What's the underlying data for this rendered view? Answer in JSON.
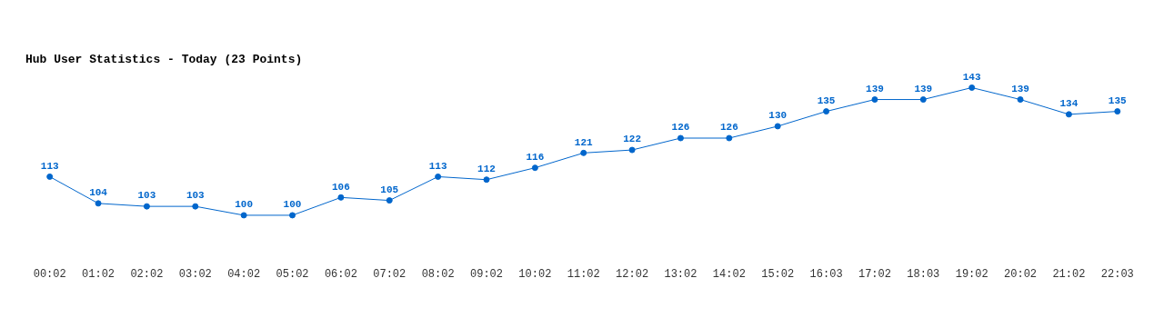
{
  "chart_data": {
    "type": "line",
    "title": "Hub User Statistics - Today (23 Points)",
    "categories": [
      "00:02",
      "01:02",
      "02:02",
      "03:02",
      "04:02",
      "05:02",
      "06:02",
      "07:02",
      "08:02",
      "09:02",
      "10:02",
      "11:02",
      "12:02",
      "13:02",
      "14:02",
      "15:02",
      "16:03",
      "17:02",
      "18:03",
      "19:02",
      "20:02",
      "21:02",
      "22:03"
    ],
    "series": [
      {
        "color": "#0066cc",
        "values": [
          113,
          104,
          103,
          103,
          100,
          100,
          106,
          105,
          113,
          112,
          116,
          121,
          122,
          126,
          126,
          130,
          135,
          139,
          139,
          143,
          139,
          134,
          135
        ]
      }
    ],
    "data_labels": true,
    "grid": false,
    "legend": false,
    "marker": "circle",
    "line_style": "solid",
    "tick_labels": "x"
  }
}
